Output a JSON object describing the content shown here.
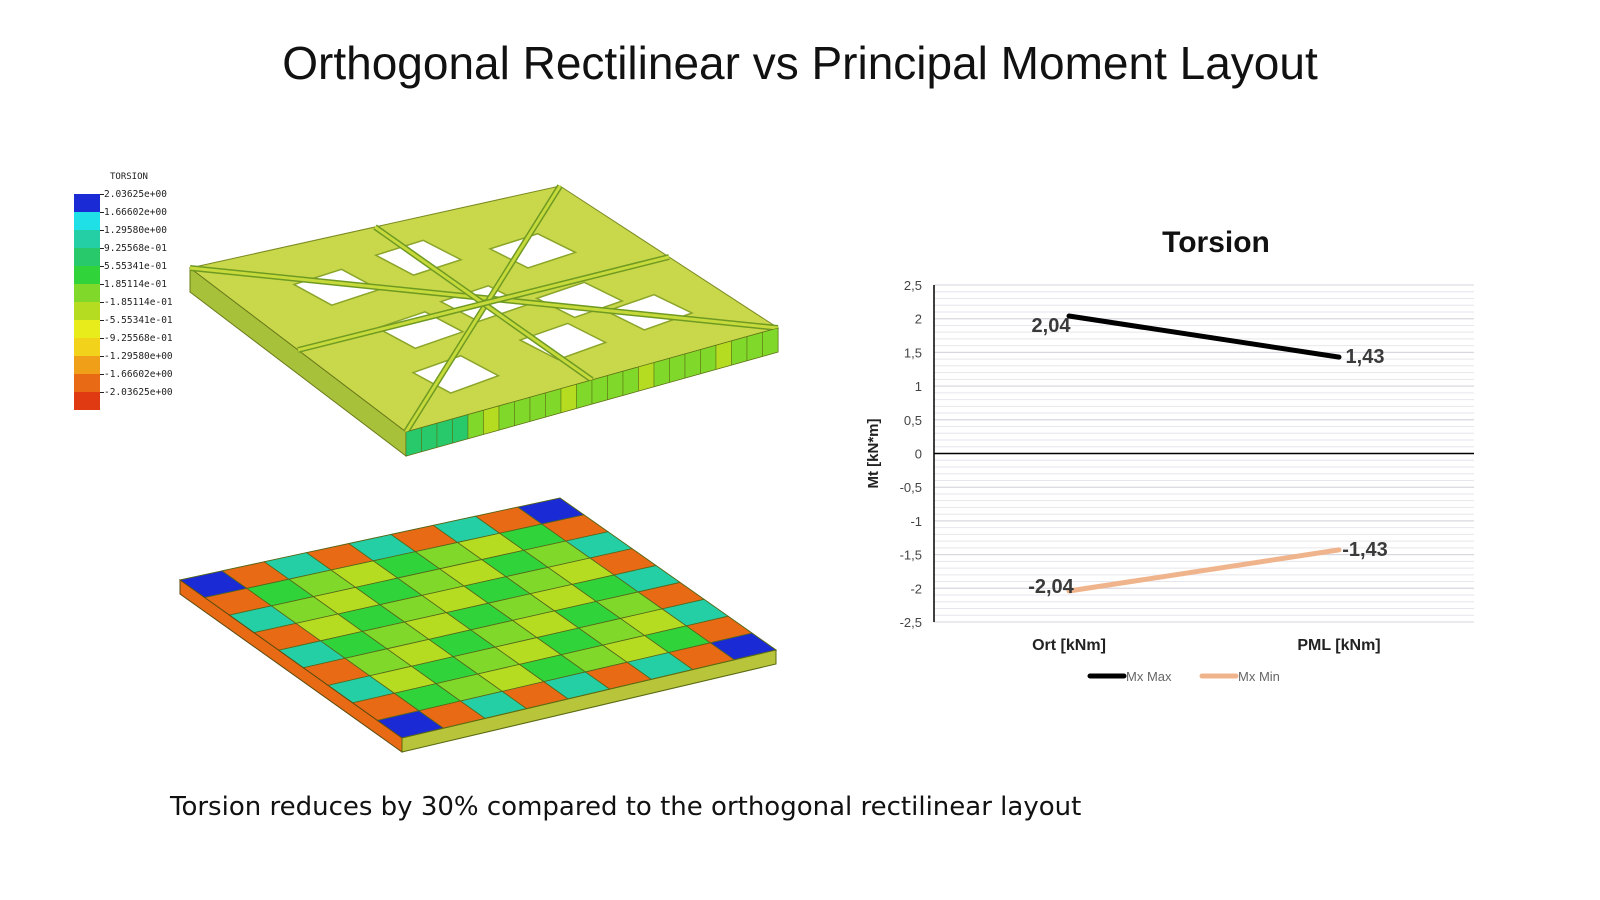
{
  "slide": {
    "title": "Orthogonal Rectilinear vs Principal Moment Layout",
    "caption": "Torsion reduces by 30% compared to the orthogonal rectilinear layout"
  },
  "fem_legend": {
    "title": "TORSION",
    "values": [
      "2.03625e+00",
      "1.66602e+00",
      "1.29580e+00",
      "9.25568e-01",
      "5.55341e-01",
      "1.85114e-01",
      "-1.85114e-01",
      "-5.55341e-01",
      "-9.25568e-01",
      "-1.29580e+00",
      "-1.66602e+00",
      "-2.03625e+00"
    ],
    "colors": [
      "#1a2bd6",
      "#1fe0e6",
      "#24cfa6",
      "#27c96a",
      "#30d43a",
      "#7fd82a",
      "#b6dc22",
      "#e8ec1a",
      "#f2d21a",
      "#f0a018",
      "#e86a14",
      "#e03a12"
    ]
  },
  "chart_data": {
    "type": "line",
    "title": "Torsion",
    "xlabel": "",
    "ylabel": "Mt [kN*m]",
    "categories": [
      "Ort [kNm]",
      "PML [kNm]"
    ],
    "ylim": [
      -2.5,
      2.5
    ],
    "yticks": [
      2.5,
      2,
      1.5,
      1,
      0.5,
      0,
      -0.5,
      -1,
      -1.5,
      -2,
      -2.5
    ],
    "ytick_labels": [
      "2,5",
      "2",
      "1,5",
      "1",
      "0,5",
      "0",
      "-0,5",
      "-1",
      "-1,5",
      "-2",
      "-2,5"
    ],
    "grid": true,
    "legend_position": "bottom",
    "series": [
      {
        "name": "Mx Max",
        "values": [
          2.04,
          1.43
        ],
        "labels": [
          "2,04",
          "1,43"
        ],
        "color": "#000000"
      },
      {
        "name": "Mx Min",
        "values": [
          -2.04,
          -1.43
        ],
        "labels": [
          "-2,04",
          "-1,43"
        ],
        "color": "#f0b48c"
      }
    ]
  }
}
